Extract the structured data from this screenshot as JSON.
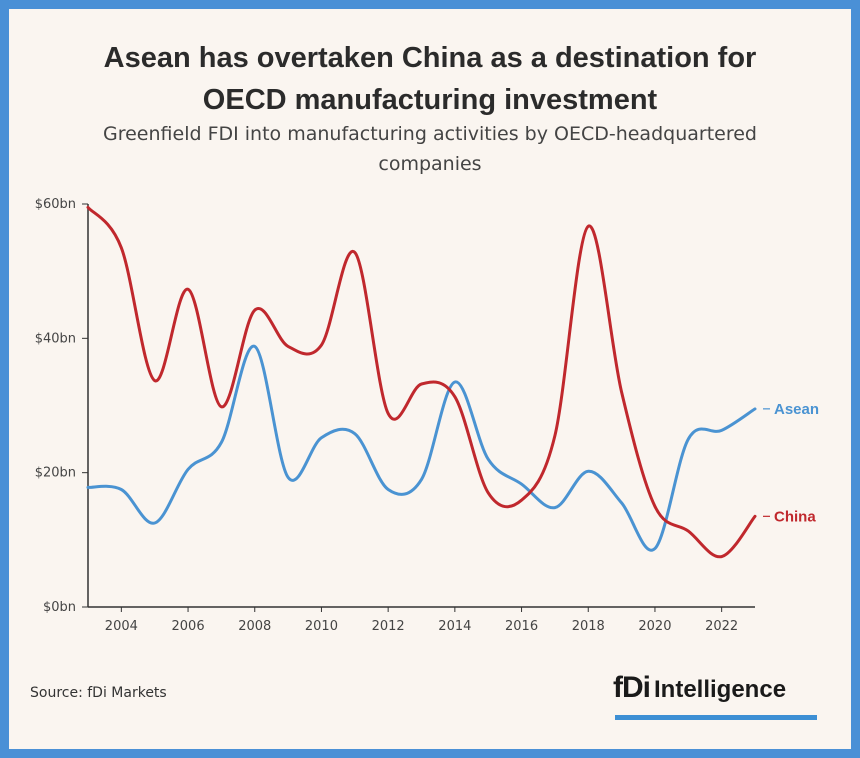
{
  "title_line1": "Asean has overtaken China as a destination for",
  "title_line2": "OECD manufacturing investment",
  "subtitle": "Greenfield FDI into manufacturing activities by OECD-headquartered companies",
  "source": "Source: fDi Markets",
  "logo": {
    "mark": "fDi",
    "word": "Intelligence",
    "bar_color": "#3d8fd4"
  },
  "chart_data": {
    "type": "line",
    "title": "Asean has overtaken China as a destination for OECD manufacturing investment",
    "subtitle": "Greenfield FDI into manufacturing activities by OECD-headquartered companies",
    "xlabel": "",
    "ylabel": "",
    "xlim": [
      2003,
      2023
    ],
    "ylim": [
      0,
      60
    ],
    "x": [
      2003,
      2004,
      2005,
      2006,
      2007,
      2008,
      2009,
      2010,
      2011,
      2012,
      2013,
      2014,
      2015,
      2016,
      2017,
      2018,
      2019,
      2020,
      2021,
      2022,
      2023
    ],
    "y_ticks": [
      0,
      20,
      40,
      60
    ],
    "y_tick_labels": [
      "$0bn",
      "$20bn",
      "$40bn",
      "$60bn"
    ],
    "x_ticks": [
      2004,
      2006,
      2008,
      2010,
      2012,
      2014,
      2016,
      2018,
      2020,
      2022
    ],
    "x_tick_labels": [
      "2004",
      "2006",
      "2008",
      "2010",
      "2012",
      "2014",
      "2016",
      "2018",
      "2020",
      "2022"
    ],
    "grid": false,
    "series": [
      {
        "name": "Asean",
        "color": "#4a93d2",
        "values": [
          17.8,
          17.5,
          12.5,
          20.5,
          24.5,
          38.8,
          19.3,
          25.2,
          25.8,
          17.5,
          19.0,
          33.5,
          22.0,
          18.3,
          14.8,
          20.2,
          15.5,
          8.7,
          25.0,
          26.3,
          29.5
        ]
      },
      {
        "name": "China",
        "color": "#c0282d",
        "values": [
          59.5,
          53.5,
          33.7,
          47.3,
          29.8,
          44.2,
          38.8,
          39.0,
          52.8,
          28.8,
          33.2,
          31.3,
          17.0,
          15.9,
          25.5,
          56.7,
          32.0,
          15.0,
          11.3,
          7.5,
          13.5
        ]
      }
    ]
  }
}
